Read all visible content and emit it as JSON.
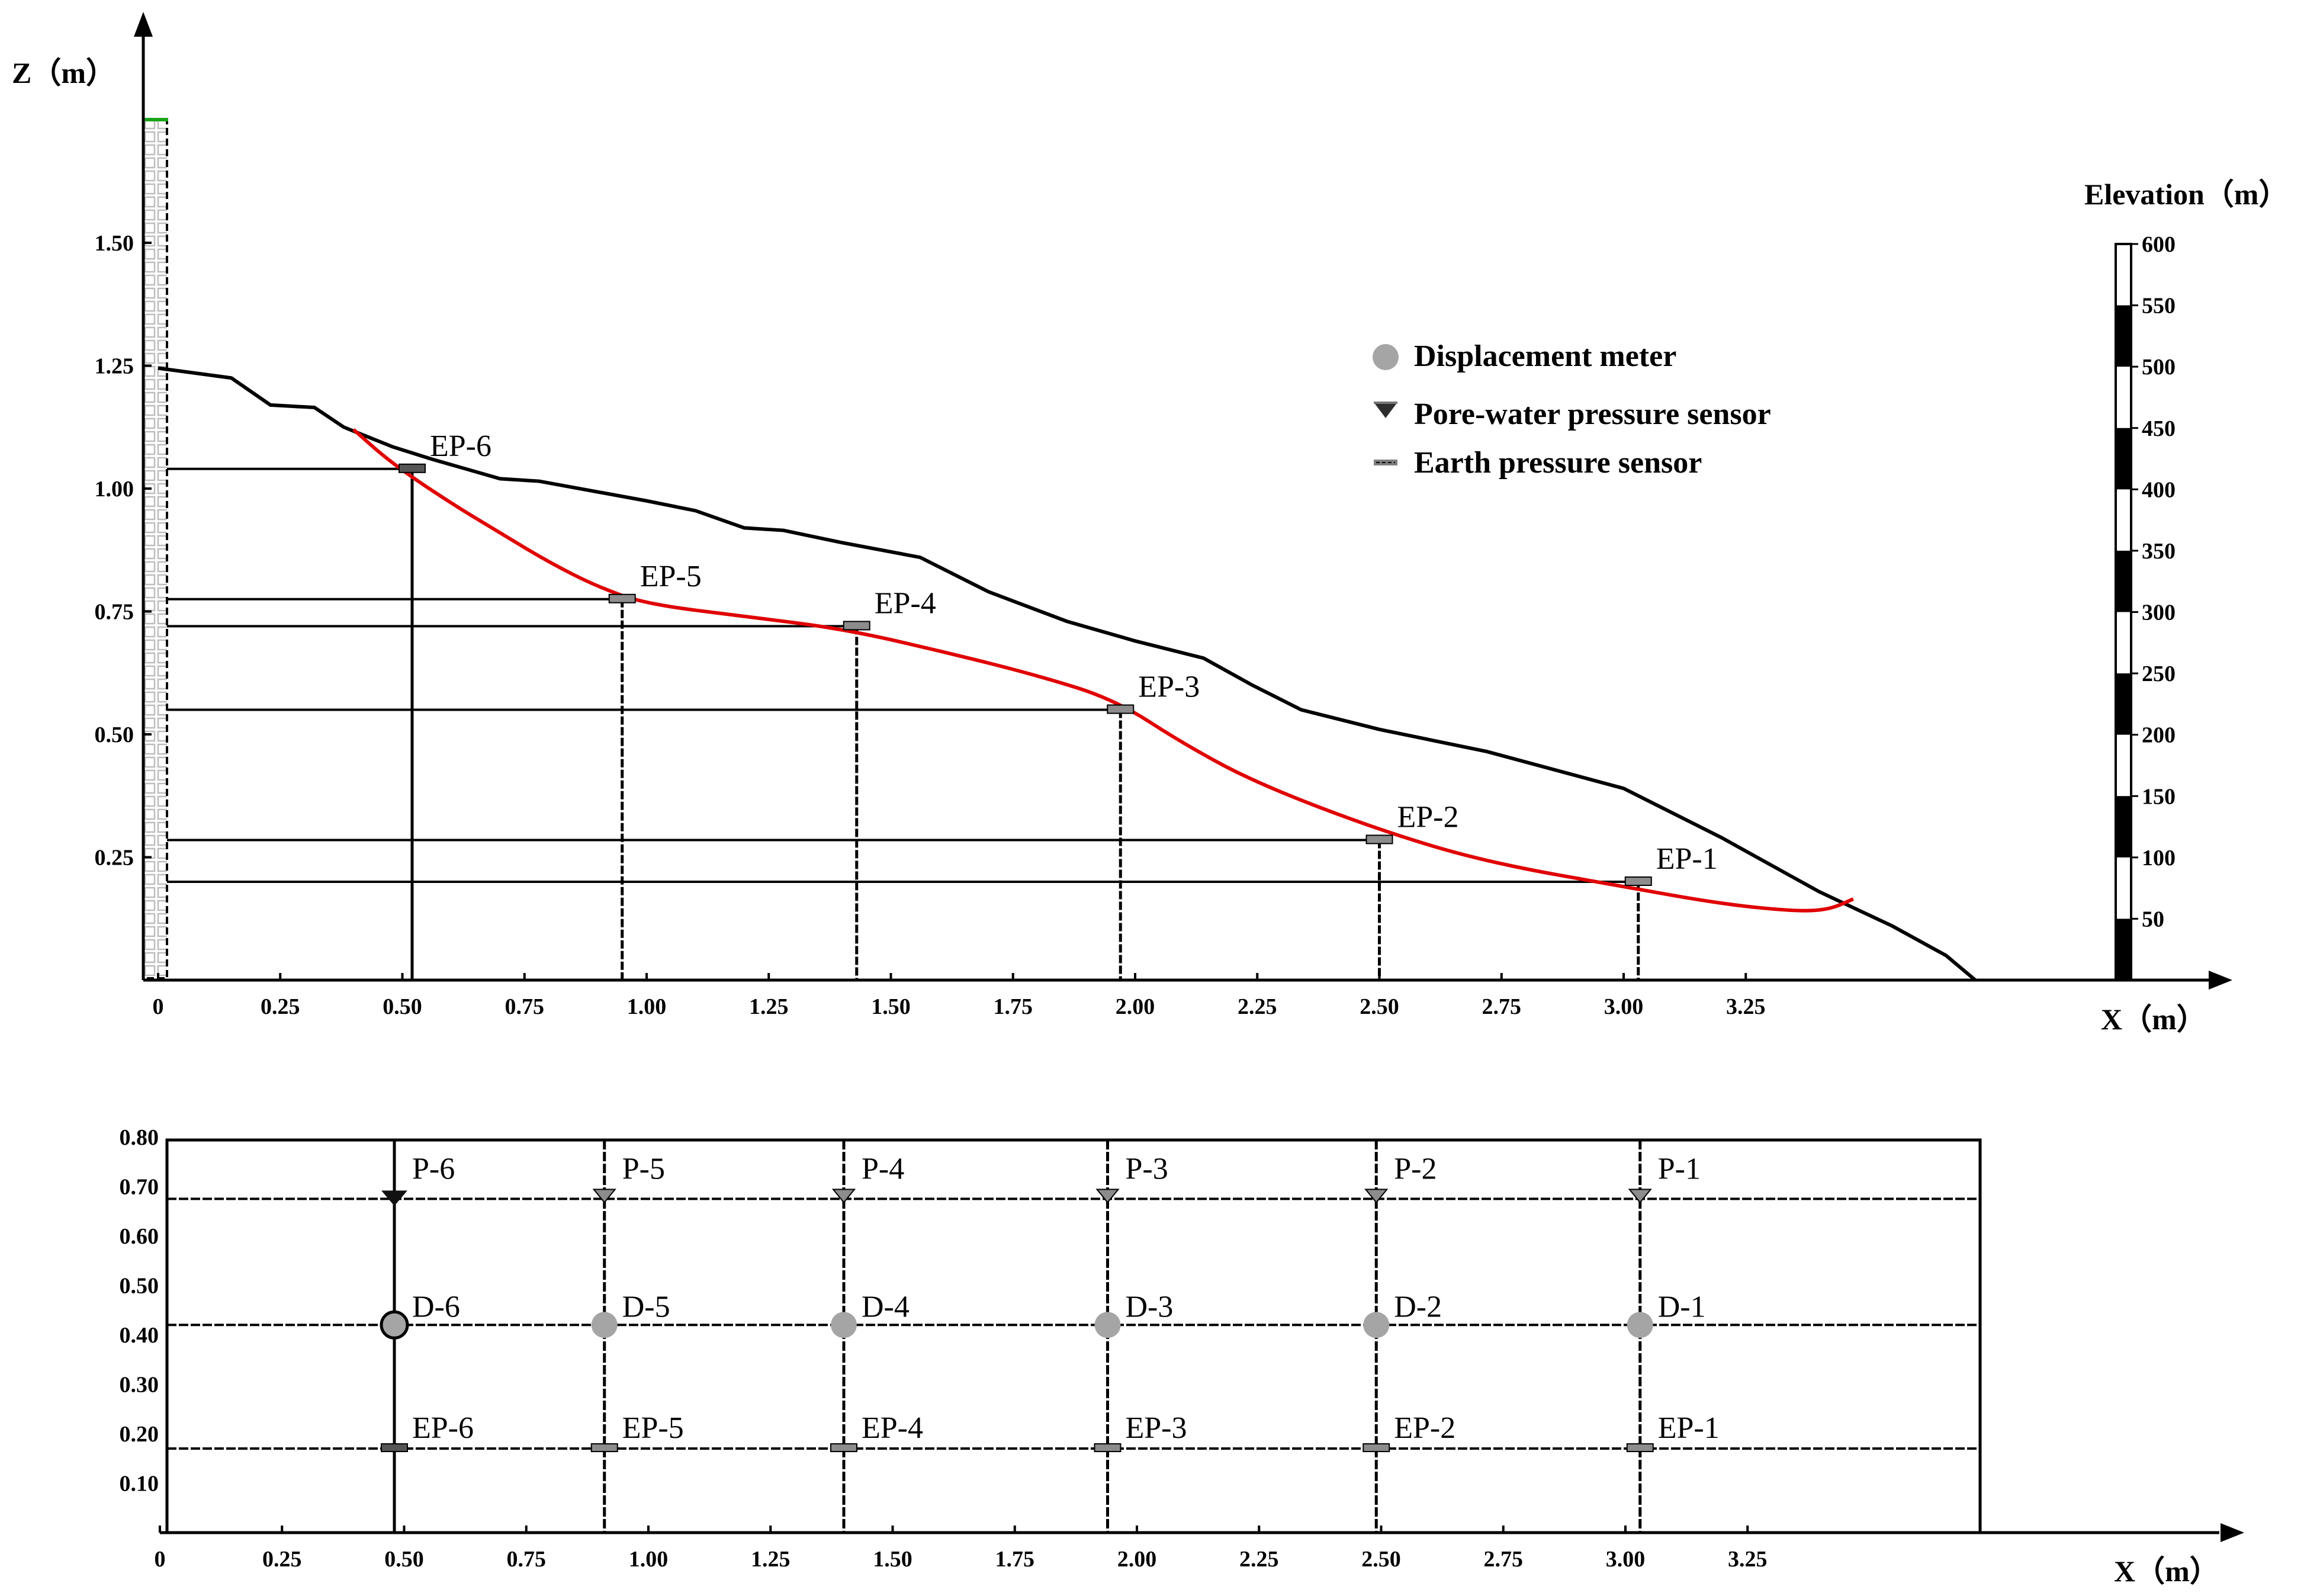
{
  "profile": {
    "z_axis_title": "Z（m）",
    "x_axis_title": "X（m）",
    "z_ticks": [
      {
        "v": 0.25,
        "label": "0.25"
      },
      {
        "v": 0.5,
        "label": "0.50"
      },
      {
        "v": 0.75,
        "label": "0.75"
      },
      {
        "v": 1.0,
        "label": "1.00"
      },
      {
        "v": 1.25,
        "label": "1.25"
      },
      {
        "v": 1.5,
        "label": "1.50"
      }
    ],
    "x_ticks": [
      {
        "v": 0,
        "label": "0"
      },
      {
        "v": 0.25,
        "label": "0.25"
      },
      {
        "v": 0.5,
        "label": "0.50"
      },
      {
        "v": 0.75,
        "label": "0.75"
      },
      {
        "v": 1.0,
        "label": "1.00"
      },
      {
        "v": 1.25,
        "label": "1.25"
      },
      {
        "v": 1.5,
        "label": "1.50"
      },
      {
        "v": 1.75,
        "label": "1.75"
      },
      {
        "v": 2.0,
        "label": "2.00"
      },
      {
        "v": 2.25,
        "label": "2.25"
      },
      {
        "v": 2.5,
        "label": "2.50"
      },
      {
        "v": 2.75,
        "label": "2.75"
      },
      {
        "v": 3.0,
        "label": "3.00"
      },
      {
        "v": 3.25,
        "label": "3.25"
      }
    ],
    "ground_surface": [
      [
        0.0,
        1.245
      ],
      [
        0.15,
        1.225
      ],
      [
        0.23,
        1.17
      ],
      [
        0.32,
        1.165
      ],
      [
        0.38,
        1.125
      ],
      [
        0.48,
        1.085
      ],
      [
        0.56,
        1.06
      ],
      [
        0.7,
        1.02
      ],
      [
        0.78,
        1.015
      ],
      [
        1.0,
        0.975
      ],
      [
        1.1,
        0.955
      ],
      [
        1.2,
        0.92
      ],
      [
        1.28,
        0.915
      ],
      [
        1.4,
        0.89
      ],
      [
        1.56,
        0.86
      ],
      [
        1.7,
        0.79
      ],
      [
        1.86,
        0.73
      ],
      [
        2.0,
        0.69
      ],
      [
        2.14,
        0.655
      ],
      [
        2.24,
        0.6
      ],
      [
        2.34,
        0.55
      ],
      [
        2.5,
        0.51
      ],
      [
        2.72,
        0.465
      ],
      [
        3.0,
        0.39
      ],
      [
        3.2,
        0.29
      ],
      [
        3.4,
        0.18
      ],
      [
        3.55,
        0.11
      ],
      [
        3.66,
        0.05
      ],
      [
        3.72,
        0.0
      ]
    ],
    "slip_surface": [
      [
        0.4,
        1.12
      ],
      [
        0.48,
        1.05
      ],
      [
        0.6,
        0.97
      ],
      [
        0.7,
        0.91
      ],
      [
        0.8,
        0.85
      ],
      [
        0.9,
        0.8
      ],
      [
        1.0,
        0.765
      ],
      [
        1.2,
        0.74
      ],
      [
        1.4,
        0.715
      ],
      [
        1.6,
        0.67
      ],
      [
        1.8,
        0.62
      ],
      [
        1.96,
        0.57
      ],
      [
        2.1,
        0.48
      ],
      [
        2.25,
        0.4
      ],
      [
        2.5,
        0.305
      ],
      [
        2.72,
        0.24
      ],
      [
        3.0,
        0.19
      ],
      [
        3.2,
        0.155
      ],
      [
        3.35,
        0.14
      ],
      [
        3.42,
        0.143
      ],
      [
        3.47,
        0.165
      ]
    ],
    "sensors": [
      {
        "id": "EP-6",
        "x": 0.52,
        "z": 1.04
      },
      {
        "id": "EP-5",
        "x": 0.95,
        "z": 0.775
      },
      {
        "id": "EP-4",
        "x": 1.43,
        "z": 0.72
      },
      {
        "id": "EP-3",
        "x": 1.97,
        "z": 0.55
      },
      {
        "id": "EP-2",
        "x": 2.5,
        "z": 0.285
      },
      {
        "id": "EP-1",
        "x": 3.03,
        "z": 0.2
      }
    ]
  },
  "legend": {
    "displacement": "Displacement meter",
    "pore_water": "Pore-water pressure sensor",
    "earth_pressure": "Earth pressure sensor"
  },
  "elevation_bar": {
    "title": "Elevation（m）",
    "ticks": [
      "600",
      "550",
      "500",
      "450",
      "400",
      "350",
      "300",
      "250",
      "200",
      "150",
      "100",
      "50"
    ]
  },
  "plan": {
    "x_axis_title": "X（m）",
    "y_ticks": [
      {
        "v": 0.1,
        "label": "0.10"
      },
      {
        "v": 0.2,
        "label": "0.20"
      },
      {
        "v": 0.3,
        "label": "0.30"
      },
      {
        "v": 0.4,
        "label": "0.40"
      },
      {
        "v": 0.5,
        "label": "0.50"
      },
      {
        "v": 0.6,
        "label": "0.60"
      },
      {
        "v": 0.7,
        "label": "0.70"
      },
      {
        "v": 0.8,
        "label": "0.80"
      }
    ],
    "x_ticks": [
      {
        "v": 0,
        "label": "0"
      },
      {
        "v": 0.25,
        "label": "0.25"
      },
      {
        "v": 0.5,
        "label": "0.50"
      },
      {
        "v": 0.75,
        "label": "0.75"
      },
      {
        "v": 1.0,
        "label": "1.00"
      },
      {
        "v": 1.25,
        "label": "1.25"
      },
      {
        "v": 1.5,
        "label": "1.50"
      },
      {
        "v": 1.75,
        "label": "1.75"
      },
      {
        "v": 2.0,
        "label": "2.00"
      },
      {
        "v": 2.25,
        "label": "2.25"
      },
      {
        "v": 2.5,
        "label": "2.50"
      },
      {
        "v": 2.75,
        "label": "2.75"
      },
      {
        "v": 3.0,
        "label": "3.00"
      },
      {
        "v": 3.25,
        "label": "3.25"
      }
    ],
    "row_y": {
      "pore": 0.675,
      "disp": 0.42,
      "earth": 0.17
    },
    "columns": [
      {
        "x": 0.48,
        "p": "P-6",
        "d": "D-6",
        "ep": "EP-6"
      },
      {
        "x": 0.91,
        "p": "P-5",
        "d": "D-5",
        "ep": "EP-5"
      },
      {
        "x": 1.4,
        "p": "P-4",
        "d": "D-4",
        "ep": "EP-4"
      },
      {
        "x": 1.94,
        "p": "P-3",
        "d": "D-3",
        "ep": "EP-3"
      },
      {
        "x": 2.49,
        "p": "P-2",
        "d": "D-2",
        "ep": "EP-2"
      },
      {
        "x": 3.03,
        "p": "P-1",
        "d": "D-1",
        "ep": "EP-1"
      }
    ]
  }
}
